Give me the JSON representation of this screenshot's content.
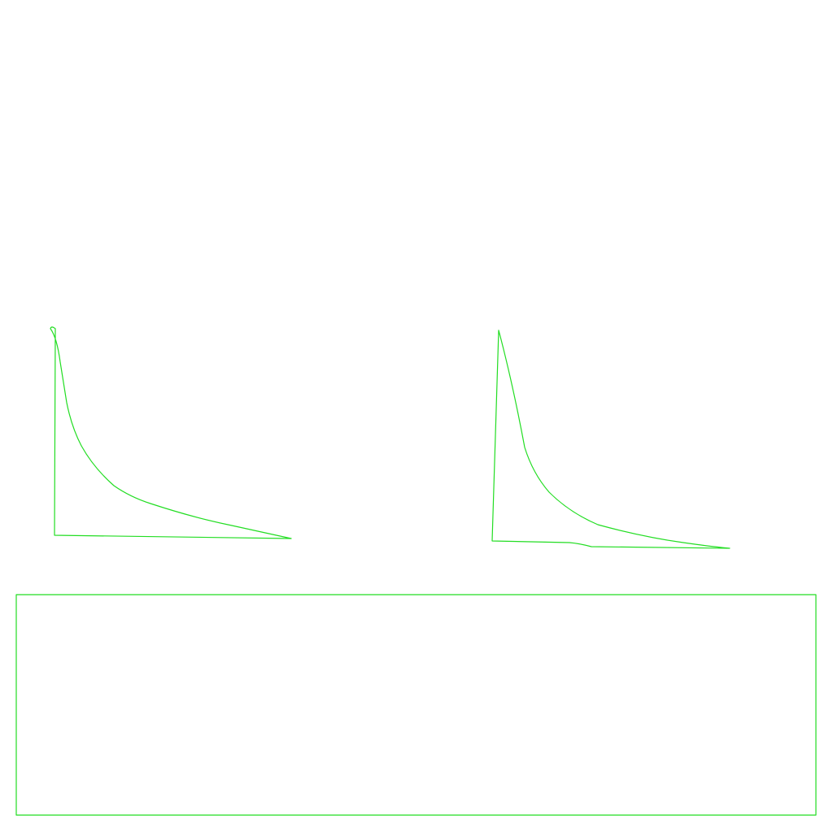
{
  "diagram": {
    "stroke_color": "#22dd22",
    "background_color": "#ffffff",
    "shapes": [
      {
        "kind": "curved-right-triangle"
      },
      {
        "kind": "curved-right-triangle"
      },
      {
        "kind": "rectangle"
      }
    ]
  }
}
